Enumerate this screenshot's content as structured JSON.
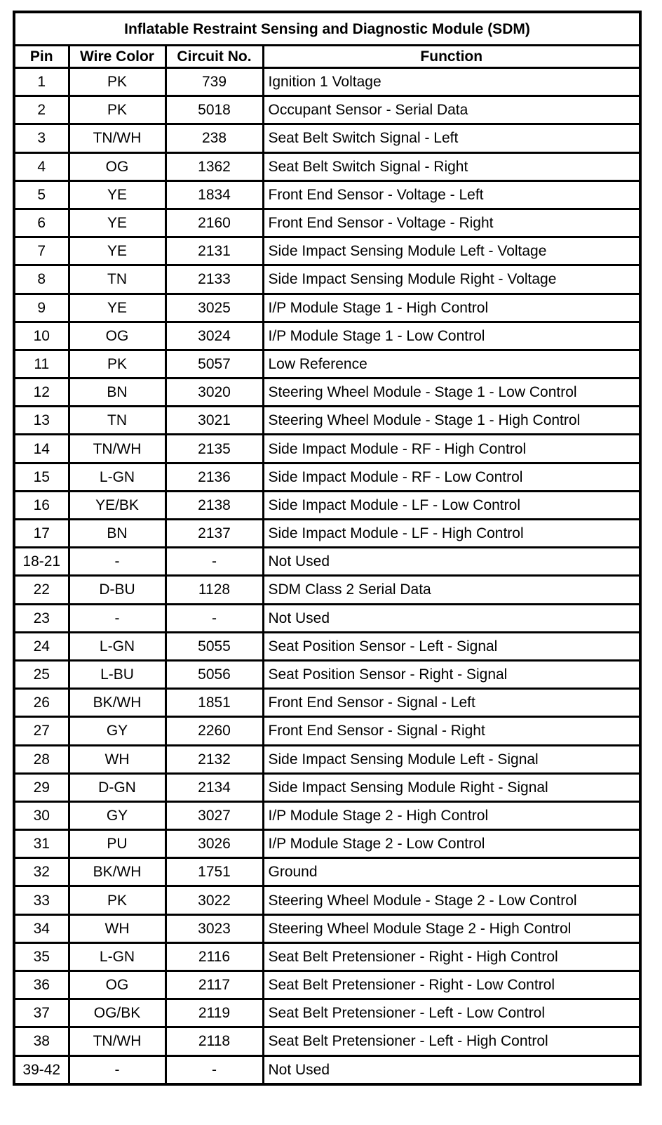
{
  "title": "Inflatable Restraint Sensing and Diagnostic Module (SDM)",
  "headers": [
    "Pin",
    "Wire Color",
    "Circuit No.",
    "Function"
  ],
  "rows": [
    [
      "1",
      "PK",
      "739",
      "Ignition 1 Voltage"
    ],
    [
      "2",
      "PK",
      "5018",
      "Occupant Sensor - Serial Data"
    ],
    [
      "3",
      "TN/WH",
      "238",
      "Seat Belt Switch Signal - Left"
    ],
    [
      "4",
      "OG",
      "1362",
      "Seat Belt Switch Signal - Right"
    ],
    [
      "5",
      "YE",
      "1834",
      "Front End Sensor - Voltage - Left"
    ],
    [
      "6",
      "YE",
      "2160",
      "Front End Sensor - Voltage - Right"
    ],
    [
      "7",
      "YE",
      "2131",
      "Side Impact Sensing Module Left - Voltage"
    ],
    [
      "8",
      "TN",
      "2133",
      "Side Impact Sensing Module Right - Voltage"
    ],
    [
      "9",
      "YE",
      "3025",
      "I/P Module Stage 1 - High Control"
    ],
    [
      "10",
      "OG",
      "3024",
      "I/P Module Stage 1 - Low Control"
    ],
    [
      "11",
      "PK",
      "5057",
      "Low Reference"
    ],
    [
      "12",
      "BN",
      "3020",
      "Steering Wheel Module - Stage 1 - Low Control"
    ],
    [
      "13",
      "TN",
      "3021",
      "Steering Wheel Module - Stage 1 - High Control"
    ],
    [
      "14",
      "TN/WH",
      "2135",
      "Side Impact Module - RF - High Control"
    ],
    [
      "15",
      "L-GN",
      "2136",
      "Side Impact Module - RF - Low Control"
    ],
    [
      "16",
      "YE/BK",
      "2138",
      "Side Impact Module - LF - Low Control"
    ],
    [
      "17",
      "BN",
      "2137",
      "Side Impact Module - LF - High Control"
    ],
    [
      "18-21",
      "-",
      "-",
      "Not Used"
    ],
    [
      "22",
      "D-BU",
      "1128",
      "SDM Class 2 Serial Data"
    ],
    [
      "23",
      "-",
      "-",
      "Not Used"
    ],
    [
      "24",
      "L-GN",
      "5055",
      "Seat Position Sensor - Left - Signal"
    ],
    [
      "25",
      "L-BU",
      "5056",
      "Seat Position Sensor - Right - Signal"
    ],
    [
      "26",
      "BK/WH",
      "1851",
      "Front End Sensor - Signal - Left"
    ],
    [
      "27",
      "GY",
      "2260",
      "Front End Sensor - Signal - Right"
    ],
    [
      "28",
      "WH",
      "2132",
      "Side Impact Sensing Module Left - Signal"
    ],
    [
      "29",
      "D-GN",
      "2134",
      "Side Impact Sensing Module Right - Signal"
    ],
    [
      "30",
      "GY",
      "3027",
      "I/P Module Stage 2 - High Control"
    ],
    [
      "31",
      "PU",
      "3026",
      "I/P Module Stage 2 - Low Control"
    ],
    [
      "32",
      "BK/WH",
      "1751",
      "Ground"
    ],
    [
      "33",
      "PK",
      "3022",
      "Steering Wheel Module - Stage 2 - Low Control"
    ],
    [
      "34",
      "WH",
      "3023",
      "Steering Wheel Module Stage 2 - High Control"
    ],
    [
      "35",
      "L-GN",
      "2116",
      "Seat Belt Pretensioner - Right - High Control"
    ],
    [
      "36",
      "OG",
      "2117",
      "Seat Belt Pretensioner - Right - Low Control"
    ],
    [
      "37",
      "OG/BK",
      "2119",
      "Seat Belt Pretensioner - Left - Low Control"
    ],
    [
      "38",
      "TN/WH",
      "2118",
      "Seat Belt Pretensioner - Left - High Control"
    ],
    [
      "39-42",
      "-",
      "-",
      "Not Used"
    ]
  ]
}
